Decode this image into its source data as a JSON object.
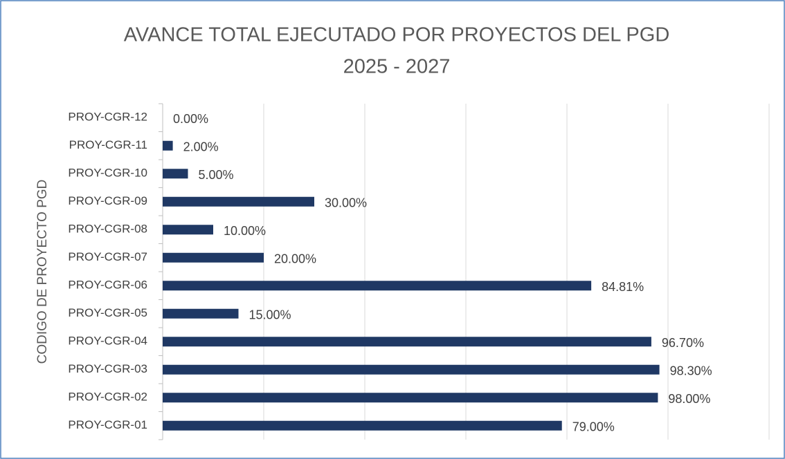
{
  "chart_data": {
    "type": "barh",
    "title": [
      "AVANCE TOTAL EJECUTADO POR PROYECTOS DEL PGD",
      "2025 - 2027"
    ],
    "y_label": "CODIGO DE PROYECTO PGD",
    "categories": [
      "PROY-CGR-01",
      "PROY-CGR-02",
      "PROY-CGR-03",
      "PROY-CGR-04",
      "PROY-CGR-05",
      "PROY-CGR-06",
      "PROY-CGR-07",
      "PROY-CGR-08",
      "PROY-CGR-09",
      "PROY-CGR-10",
      "PROY-CGR-11",
      "PROY-CGR-12"
    ],
    "values": [
      79,
      98,
      98.3,
      96.7,
      15,
      84.81,
      20,
      10,
      30,
      5,
      2,
      0
    ],
    "value_labels": [
      "79.00%",
      "98.00%",
      "98.30%",
      "96.70%",
      "15.00%",
      "84.81%",
      "20.00%",
      "10.00%",
      "30.00%",
      "5.00%",
      "2.00%",
      "0.00%"
    ],
    "color": "#1f3864",
    "xlim": [
      0,
      120
    ],
    "xticks": [
      0,
      20,
      40,
      60,
      80,
      100,
      120
    ],
    "grid": true
  }
}
